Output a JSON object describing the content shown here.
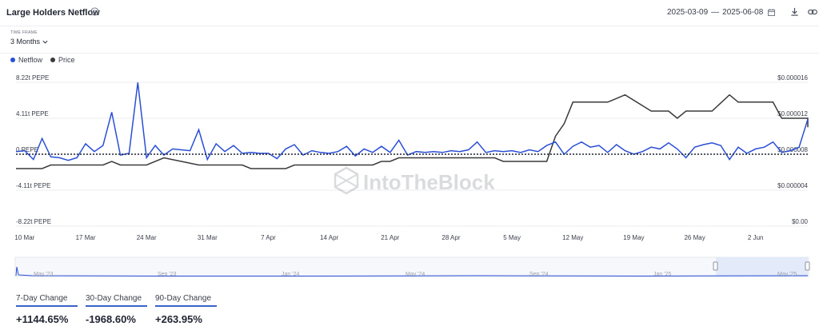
{
  "header": {
    "title": "Large Holders Netflow",
    "date_start": "2025-03-09",
    "date_sep": "—",
    "date_end": "2025-06-08"
  },
  "timeframe": {
    "label": "TIME FRAME",
    "value": "3 Months"
  },
  "legend": [
    {
      "name": "Netflow",
      "color": "#2a4fd6"
    },
    {
      "name": "Price",
      "color": "#3a3a3a"
    }
  ],
  "watermark": "IntoTheBlock",
  "stats": [
    {
      "label": "7-Day Change",
      "value": "+1144.65%"
    },
    {
      "label": "30-Day Change",
      "value": "-1968.60%"
    },
    {
      "label": "90-Day Change",
      "value": "+263.95%"
    }
  ],
  "chart_data": {
    "type": "line",
    "x_start": "2025-03-09",
    "x_end": "2025-06-08",
    "x_ticks": [
      "10 Mar",
      "17 Mar",
      "24 Mar",
      "31 Mar",
      "7 Apr",
      "14 Apr",
      "21 Apr",
      "28 Apr",
      "5 May",
      "12 May",
      "19 May",
      "26 May",
      "2 Jun"
    ],
    "y_left": {
      "ticks": [
        "8.22t PEPE",
        "4.11t PEPE",
        "0 PEPE",
        "-4.11t PEPE",
        "-8.22t PEPE"
      ],
      "range": [
        -8.22,
        8.22
      ],
      "unit": "t PEPE"
    },
    "y_right": {
      "ticks": [
        "$0.000016",
        "$0.000012",
        "$0.000008",
        "$0.000004",
        "$0.00"
      ],
      "range": [
        0,
        1.6e-05
      ]
    },
    "netflow_series": [
      {
        "date": "2025-03-09",
        "value": 0.3
      },
      {
        "date": "2025-03-10",
        "value": 0.4
      },
      {
        "date": "2025-03-11",
        "value": -0.6
      },
      {
        "date": "2025-03-12",
        "value": 1.8
      },
      {
        "date": "2025-03-13",
        "value": -0.3
      },
      {
        "date": "2025-03-14",
        "value": -0.4
      },
      {
        "date": "2025-03-15",
        "value": -0.7
      },
      {
        "date": "2025-03-16",
        "value": -0.4
      },
      {
        "date": "2025-03-17",
        "value": 1.2
      },
      {
        "date": "2025-03-18",
        "value": 0.3
      },
      {
        "date": "2025-03-19",
        "value": 1.0
      },
      {
        "date": "2025-03-20",
        "value": 4.8
      },
      {
        "date": "2025-03-21",
        "value": -0.1
      },
      {
        "date": "2025-03-22",
        "value": 0.1
      },
      {
        "date": "2025-03-23",
        "value": 8.2
      },
      {
        "date": "2025-03-24",
        "value": -0.4
      },
      {
        "date": "2025-03-25",
        "value": 1.0
      },
      {
        "date": "2025-03-26",
        "value": -0.1
      },
      {
        "date": "2025-03-27",
        "value": 0.6
      },
      {
        "date": "2025-03-28",
        "value": 0.5
      },
      {
        "date": "2025-03-29",
        "value": 0.4
      },
      {
        "date": "2025-03-30",
        "value": 2.8
      },
      {
        "date": "2025-03-31",
        "value": -0.6
      },
      {
        "date": "2025-04-01",
        "value": 1.2
      },
      {
        "date": "2025-04-02",
        "value": 0.3
      },
      {
        "date": "2025-04-03",
        "value": 1.0
      },
      {
        "date": "2025-04-04",
        "value": 0.1
      },
      {
        "date": "2025-04-05",
        "value": 0.2
      },
      {
        "date": "2025-04-06",
        "value": 0.1
      },
      {
        "date": "2025-04-07",
        "value": 0.1
      },
      {
        "date": "2025-04-08",
        "value": -0.5
      },
      {
        "date": "2025-04-09",
        "value": 0.6
      },
      {
        "date": "2025-04-10",
        "value": 1.1
      },
      {
        "date": "2025-04-11",
        "value": -0.1
      },
      {
        "date": "2025-04-12",
        "value": 0.4
      },
      {
        "date": "2025-04-13",
        "value": 0.2
      },
      {
        "date": "2025-04-14",
        "value": 0.1
      },
      {
        "date": "2025-04-15",
        "value": 0.3
      },
      {
        "date": "2025-04-16",
        "value": 0.9
      },
      {
        "date": "2025-04-17",
        "value": -0.2
      },
      {
        "date": "2025-04-18",
        "value": 0.6
      },
      {
        "date": "2025-04-19",
        "value": 0.2
      },
      {
        "date": "2025-04-20",
        "value": 0.9
      },
      {
        "date": "2025-04-21",
        "value": 0.2
      },
      {
        "date": "2025-04-22",
        "value": 1.6
      },
      {
        "date": "2025-04-23",
        "value": -0.1
      },
      {
        "date": "2025-04-24",
        "value": 0.3
      },
      {
        "date": "2025-04-25",
        "value": 0.2
      },
      {
        "date": "2025-04-26",
        "value": 0.3
      },
      {
        "date": "2025-04-27",
        "value": 0.2
      },
      {
        "date": "2025-04-28",
        "value": 0.4
      },
      {
        "date": "2025-04-29",
        "value": 0.3
      },
      {
        "date": "2025-04-30",
        "value": 0.5
      },
      {
        "date": "2025-05-01",
        "value": 1.4
      },
      {
        "date": "2025-05-02",
        "value": 0.2
      },
      {
        "date": "2025-05-03",
        "value": 0.4
      },
      {
        "date": "2025-05-04",
        "value": 0.3
      },
      {
        "date": "2025-05-05",
        "value": 0.4
      },
      {
        "date": "2025-05-06",
        "value": 0.2
      },
      {
        "date": "2025-05-07",
        "value": 0.5
      },
      {
        "date": "2025-05-08",
        "value": 0.3
      },
      {
        "date": "2025-05-09",
        "value": 1.0
      },
      {
        "date": "2025-05-10",
        "value": 1.4
      },
      {
        "date": "2025-05-11",
        "value": 0.0
      },
      {
        "date": "2025-05-12",
        "value": 0.9
      },
      {
        "date": "2025-05-13",
        "value": 1.4
      },
      {
        "date": "2025-05-14",
        "value": 0.8
      },
      {
        "date": "2025-05-15",
        "value": 1.0
      },
      {
        "date": "2025-05-16",
        "value": 0.2
      },
      {
        "date": "2025-05-17",
        "value": 1.1
      },
      {
        "date": "2025-05-18",
        "value": 0.4
      },
      {
        "date": "2025-05-19",
        "value": 0.0
      },
      {
        "date": "2025-05-20",
        "value": 0.3
      },
      {
        "date": "2025-05-21",
        "value": 0.8
      },
      {
        "date": "2025-05-22",
        "value": 0.6
      },
      {
        "date": "2025-05-23",
        "value": 1.3
      },
      {
        "date": "2025-05-24",
        "value": 0.6
      },
      {
        "date": "2025-05-25",
        "value": -0.4
      },
      {
        "date": "2025-05-26",
        "value": 0.8
      },
      {
        "date": "2025-05-27",
        "value": 1.1
      },
      {
        "date": "2025-05-28",
        "value": 1.3
      },
      {
        "date": "2025-05-29",
        "value": 1.0
      },
      {
        "date": "2025-05-30",
        "value": -0.6
      },
      {
        "date": "2025-05-31",
        "value": 0.8
      },
      {
        "date": "2025-06-01",
        "value": 0.1
      },
      {
        "date": "2025-06-02",
        "value": 0.6
      },
      {
        "date": "2025-06-03",
        "value": 0.8
      },
      {
        "date": "2025-06-04",
        "value": 1.4
      },
      {
        "date": "2025-06-05",
        "value": 0.2
      },
      {
        "date": "2025-06-06",
        "value": 0.4
      },
      {
        "date": "2025-06-07",
        "value": 0.8
      },
      {
        "date": "2025-06-08",
        "value": 4.0
      }
    ],
    "price_series": [
      {
        "date": "2025-03-09",
        "value": 6.4e-06
      },
      {
        "date": "2025-03-12",
        "value": 6.4e-06
      },
      {
        "date": "2025-03-13",
        "value": 6.8e-06
      },
      {
        "date": "2025-03-19",
        "value": 6.8e-06
      },
      {
        "date": "2025-03-20",
        "value": 7.2e-06
      },
      {
        "date": "2025-03-21",
        "value": 6.8e-06
      },
      {
        "date": "2025-03-24",
        "value": 6.8e-06
      },
      {
        "date": "2025-03-26",
        "value": 7.6e-06
      },
      {
        "date": "2025-03-28",
        "value": 7.2e-06
      },
      {
        "date": "2025-03-30",
        "value": 6.8e-06
      },
      {
        "date": "2025-04-03",
        "value": 6.8e-06
      },
      {
        "date": "2025-04-04",
        "value": 6.8e-06
      },
      {
        "date": "2025-04-05",
        "value": 6.4e-06
      },
      {
        "date": "2025-04-09",
        "value": 6.4e-06
      },
      {
        "date": "2025-04-10",
        "value": 6.8e-06
      },
      {
        "date": "2025-04-19",
        "value": 6.8e-06
      },
      {
        "date": "2025-04-20",
        "value": 7.2e-06
      },
      {
        "date": "2025-04-21",
        "value": 7.2e-06
      },
      {
        "date": "2025-04-22",
        "value": 7.6e-06
      },
      {
        "date": "2025-05-03",
        "value": 7.6e-06
      },
      {
        "date": "2025-05-04",
        "value": 7.2e-06
      },
      {
        "date": "2025-05-09",
        "value": 7.2e-06
      },
      {
        "date": "2025-05-10",
        "value": 1e-05
      },
      {
        "date": "2025-05-11",
        "value": 1.14e-05
      },
      {
        "date": "2025-05-12",
        "value": 1.38e-05
      },
      {
        "date": "2025-05-16",
        "value": 1.38e-05
      },
      {
        "date": "2025-05-18",
        "value": 1.46e-05
      },
      {
        "date": "2025-05-21",
        "value": 1.28e-05
      },
      {
        "date": "2025-05-23",
        "value": 1.28e-05
      },
      {
        "date": "2025-05-24",
        "value": 1.2e-05
      },
      {
        "date": "2025-05-25",
        "value": 1.28e-05
      },
      {
        "date": "2025-05-28",
        "value": 1.28e-05
      },
      {
        "date": "2025-05-30",
        "value": 1.46e-05
      },
      {
        "date": "2025-05-31",
        "value": 1.38e-05
      },
      {
        "date": "2025-06-04",
        "value": 1.38e-05
      },
      {
        "date": "2025-06-05",
        "value": 1.2e-05
      },
      {
        "date": "2025-06-09",
        "value": 1.2e-05
      },
      {
        "date": "2025-06-10",
        "value": 1.1e-05
      },
      {
        "date": "2025-06-11",
        "value": 1.2e-05
      },
      {
        "date": "2025-06-12",
        "value": 1.2e-05
      }
    ],
    "navigator": {
      "labels": [
        "May '23",
        "Sep '23",
        "Jan '24",
        "May '24",
        "Sep '24",
        "Jan '25",
        "May '25"
      ]
    }
  }
}
